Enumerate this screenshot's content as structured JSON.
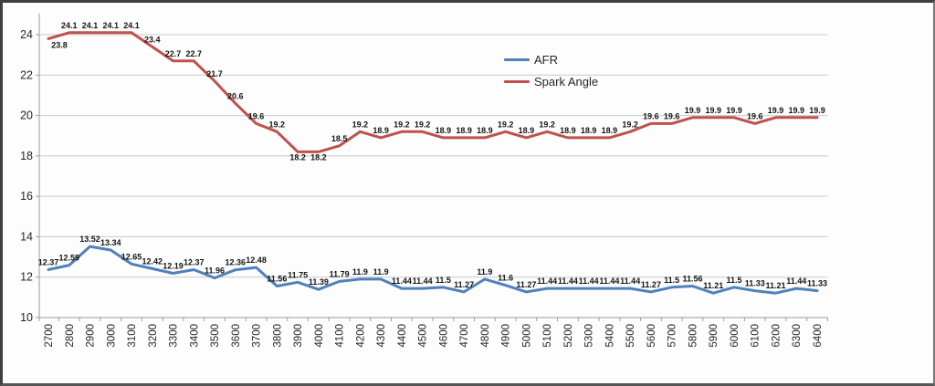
{
  "window": {
    "title": "AFR and Spark Angle vs RPM chart"
  },
  "legend": {
    "items": [
      {
        "label": "AFR",
        "color": "#4F81BD"
      },
      {
        "label": "Spark Angle",
        "color": "#C0504D"
      }
    ]
  },
  "colors": {
    "afr_line": "#4F81BD",
    "spark_line": "#C0504D",
    "gridline": "#c9c9c9",
    "axis": "#9a9a9a",
    "data_label": "#141414",
    "tick_label": "#262626",
    "background": "#fdfdfd"
  },
  "chart_data": {
    "type": "line",
    "title": "",
    "xlabel": "",
    "ylabel": "",
    "x": [
      2700,
      2800,
      2900,
      3000,
      3100,
      3200,
      3300,
      3400,
      3500,
      3600,
      3700,
      3800,
      3900,
      4000,
      4100,
      4200,
      4300,
      4400,
      4500,
      4600,
      4700,
      4800,
      4900,
      5000,
      5100,
      5200,
      5300,
      5400,
      5500,
      5600,
      5700,
      5800,
      5900,
      6000,
      6100,
      6200,
      6300,
      6400
    ],
    "series": [
      {
        "name": "AFR",
        "color": "#4F81BD",
        "values": [
          12.37,
          12.59,
          13.52,
          13.34,
          12.65,
          12.42,
          12.19,
          12.37,
          11.96,
          12.36,
          12.48,
          11.56,
          11.75,
          11.39,
          11.79,
          11.9,
          11.9,
          11.44,
          11.44,
          11.5,
          11.27,
          11.9,
          11.6,
          11.27,
          11.44,
          11.44,
          11.44,
          11.44,
          11.44,
          11.27,
          11.5,
          11.56,
          11.21,
          11.5,
          11.33,
          11.21,
          11.44,
          11.33
        ]
      },
      {
        "name": "Spark Angle",
        "color": "#C0504D",
        "values": [
          23.8,
          24.1,
          24.1,
          24.1,
          24.1,
          23.4,
          22.7,
          22.7,
          21.7,
          20.6,
          19.6,
          19.2,
          18.2,
          18.2,
          18.5,
          19.2,
          18.9,
          19.2,
          19.2,
          18.9,
          18.9,
          18.9,
          19.2,
          18.9,
          19.2,
          18.9,
          18.9,
          18.9,
          19.2,
          19.6,
          19.6,
          19.9,
          19.9,
          19.9,
          19.6,
          19.9,
          19.9,
          19.9
        ]
      }
    ],
    "y_ticks": [
      24,
      22,
      20,
      18,
      16,
      14,
      12,
      10
    ],
    "ylim": [
      10,
      24.5
    ],
    "grid": "horizontal",
    "data_labels": true,
    "legend_position": "center-right-upper"
  }
}
